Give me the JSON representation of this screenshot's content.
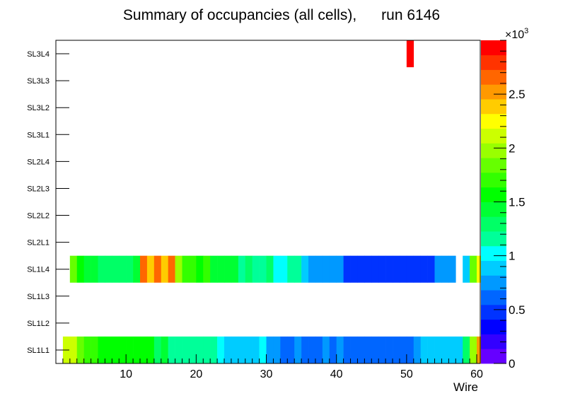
{
  "chart_data": {
    "type": "heatmap",
    "title": "Summary of occupancies (all cells),      run 6146",
    "xlabel": "Wire",
    "xlim": [
      0,
      60.5
    ],
    "x_ticks": [
      10,
      20,
      30,
      40,
      50,
      60
    ],
    "rows": [
      "SL1L1",
      "SL1L2",
      "SL1L3",
      "SL1L4",
      "SL2L1",
      "SL2L2",
      "SL2L3",
      "SL2L4",
      "SL3L1",
      "SL3L2",
      "SL3L3",
      "SL3L4"
    ],
    "colorbar": {
      "range": [
        0,
        3000
      ],
      "multiplier_label": "×10",
      "multiplier_exp": "3",
      "tick_values": [
        0,
        500,
        1000,
        1500,
        2000,
        2500
      ],
      "tick_labels": [
        "0",
        "0.5",
        "1",
        "1.5",
        "2",
        "2.5"
      ]
    },
    "cells": [
      {
        "row": "SL1L1",
        "values": [
          2100,
          2150,
          1800,
          1750,
          1700,
          1600,
          1500,
          1550,
          1500,
          1550,
          1550,
          1500,
          1500,
          1350,
          1400,
          1200,
          1150,
          1150,
          1100,
          1100,
          1100,
          1100,
          1050,
          900,
          850,
          850,
          950,
          850,
          1000,
          700,
          750,
          650,
          600,
          700,
          650,
          600,
          600,
          700,
          650,
          700,
          600,
          600,
          600,
          600,
          600,
          600,
          600,
          600,
          600,
          600,
          800,
          850,
          850,
          850,
          850,
          850,
          950,
          1300,
          2000,
          2500
        ]
      },
      {
        "row": "SL1L4",
        "values": [
          null,
          1800,
          1600,
          1450,
          1450,
          1300,
          1300,
          1350,
          1350,
          1350,
          1400,
          2650,
          2450,
          2650,
          2400,
          2600,
          1950,
          1700,
          1750,
          1500,
          1650,
          1450,
          1450,
          1450,
          1450,
          1200,
          1300,
          1200,
          1150,
          1350,
          1000,
          1050,
          1100,
          1100,
          950,
          800,
          800,
          800,
          800,
          750,
          450,
          450,
          450,
          450,
          450,
          450,
          450,
          450,
          450,
          450,
          450,
          450,
          450,
          800,
          800,
          800,
          null,
          950,
          1800,
          2300,
          2600
        ]
      },
      {
        "row": "SL3L4",
        "values": [
          {
            "wire": 50,
            "value": 3000
          }
        ]
      }
    ]
  }
}
